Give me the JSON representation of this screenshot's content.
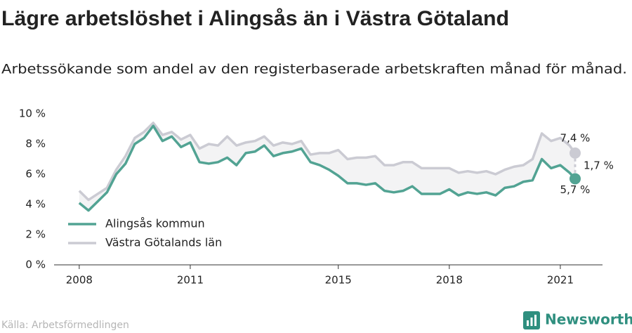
{
  "chart_data": {
    "type": "line",
    "title": "Lägre arbetslöshet i Alingsås än i Västra Götaland",
    "subtitle": "Arbetssökande som andel av den registerbaserade arbetskraften månad för månad.",
    "source": "Källa: Arbetsförmedlingen",
    "brand": "Newsworthy",
    "x": [
      2008.0,
      2008.25,
      2008.5,
      2008.75,
      2009.0,
      2009.25,
      2009.5,
      2009.75,
      2010.0,
      2010.25,
      2010.5,
      2010.75,
      2011.0,
      2011.25,
      2011.5,
      2011.75,
      2012.0,
      2012.25,
      2012.5,
      2012.75,
      2013.0,
      2013.25,
      2013.5,
      2013.75,
      2014.0,
      2014.25,
      2014.5,
      2014.75,
      2015.0,
      2015.25,
      2015.5,
      2015.75,
      2016.0,
      2016.25,
      2016.5,
      2016.75,
      2017.0,
      2017.25,
      2017.5,
      2017.75,
      2018.0,
      2018.25,
      2018.5,
      2018.75,
      2019.0,
      2019.25,
      2019.5,
      2019.75,
      2020.0,
      2020.25,
      2020.5,
      2020.75,
      2021.0,
      2021.25,
      2021.4
    ],
    "series": [
      {
        "name": "Alingsås kommun",
        "color": "#52a393",
        "values": [
          4.1,
          3.6,
          4.2,
          4.8,
          6.0,
          6.7,
          8.0,
          8.4,
          9.2,
          8.2,
          8.5,
          7.8,
          8.1,
          6.8,
          6.7,
          6.8,
          7.1,
          6.6,
          7.4,
          7.5,
          7.9,
          7.2,
          7.4,
          7.5,
          7.7,
          6.8,
          6.6,
          6.3,
          5.9,
          5.4,
          5.4,
          5.3,
          5.4,
          4.9,
          4.8,
          4.9,
          5.2,
          4.7,
          4.7,
          4.7,
          5.0,
          4.6,
          4.8,
          4.7,
          4.8,
          4.6,
          5.1,
          5.2,
          5.5,
          5.6,
          7.0,
          6.4,
          6.6,
          6.1,
          5.7
        ]
      },
      {
        "name": "Västra Götalands län",
        "color": "#cbcbd3",
        "values": [
          4.9,
          4.3,
          4.7,
          5.1,
          6.3,
          7.2,
          8.4,
          8.8,
          9.4,
          8.6,
          8.8,
          8.3,
          8.6,
          7.7,
          8.0,
          7.9,
          8.5,
          7.9,
          8.1,
          8.2,
          8.5,
          7.9,
          8.1,
          8.0,
          8.2,
          7.3,
          7.4,
          7.4,
          7.6,
          7.0,
          7.1,
          7.1,
          7.2,
          6.6,
          6.6,
          6.8,
          6.8,
          6.4,
          6.4,
          6.4,
          6.4,
          6.1,
          6.2,
          6.1,
          6.2,
          6.0,
          6.3,
          6.5,
          6.6,
          7.0,
          8.7,
          8.2,
          8.4,
          7.9,
          7.4
        ]
      }
    ],
    "annotations": [
      "7,4 %",
      "1,7 %",
      "5,7 %"
    ],
    "xlim": [
      2007.32,
      2022.14
    ],
    "xticks": [
      2008,
      2011,
      2015,
      2018,
      2021
    ],
    "ylim": [
      0,
      10
    ],
    "yticks": [
      {
        "value": 0,
        "label": "0 %"
      },
      {
        "value": 2,
        "label": "2 %"
      },
      {
        "value": 4,
        "label": "4 %"
      },
      {
        "value": 6,
        "label": "6 %"
      },
      {
        "value": 8,
        "label": "8 %"
      },
      {
        "value": 10,
        "label": "10 %"
      }
    ],
    "grid": false,
    "legend": "lower left"
  }
}
